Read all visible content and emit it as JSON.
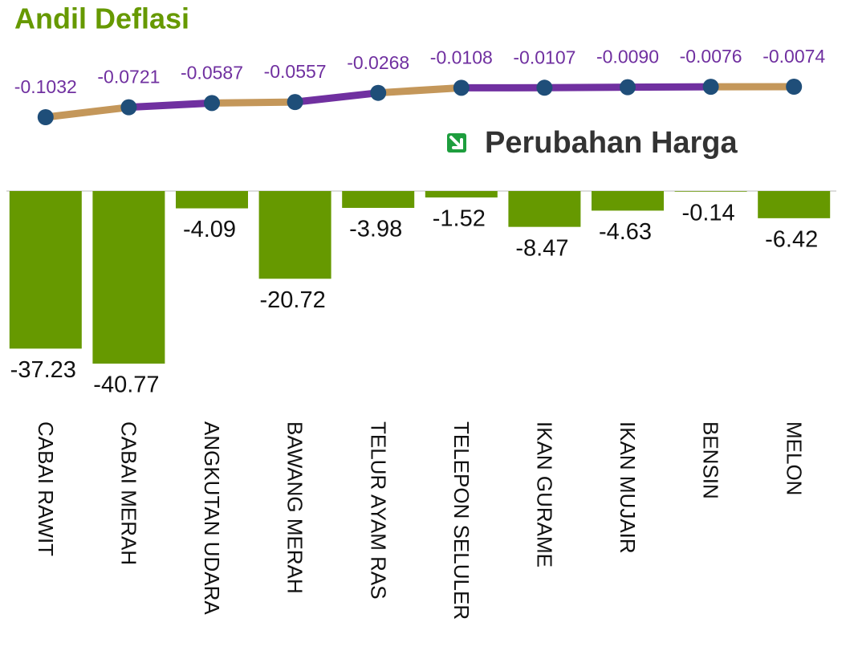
{
  "chart_data": [
    {
      "type": "line",
      "title": "Andil Deflasi",
      "values": [
        -0.1032,
        -0.0721,
        -0.0587,
        -0.0557,
        -0.0268,
        -0.0108,
        -0.0107,
        -0.009,
        -0.0076,
        -0.0074
      ],
      "value_labels": [
        "-0.1032",
        "-0.0721",
        "-0.0587",
        "-0.0557",
        "-0.0268",
        "-0.0108",
        "-0.0107",
        "-0.0090",
        "-0.0076",
        "-0.0074"
      ],
      "segment_colors": [
        "#c4975a",
        "#7030a0",
        "#c4975a",
        "#7030a0",
        "#c4975a",
        "#7030a0",
        "#7030a0",
        "#7030a0",
        "#c4975a"
      ],
      "marker_color": "#1f4e79",
      "label_color": "#7030a0"
    },
    {
      "type": "bar",
      "title": "Perubahan Harga",
      "categories": [
        "CABAI RAWIT",
        "CABAI MERAH",
        "ANGKUTAN UDARA",
        "BAWANG MERAH",
        "TELUR AYAM RAS",
        "TELEPON SELULER",
        "IKAN GURAME",
        "IKAN MUJAIR",
        "BENSIN",
        "MELON"
      ],
      "values": [
        -37.23,
        -40.77,
        -4.09,
        -20.72,
        -3.98,
        -1.52,
        -8.47,
        -4.63,
        -0.14,
        -6.42
      ],
      "color": "#669900"
    }
  ]
}
